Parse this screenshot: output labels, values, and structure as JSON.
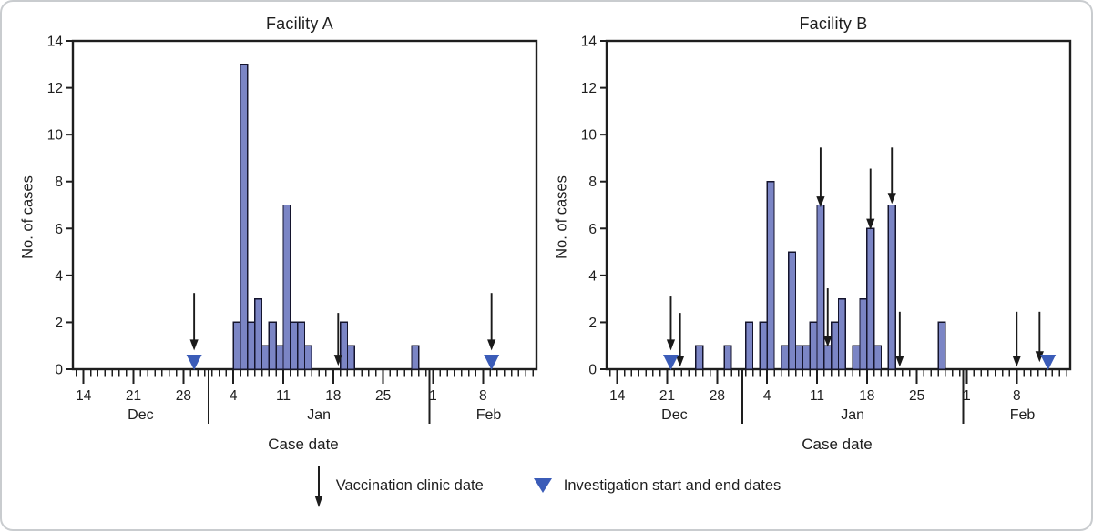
{
  "figure": {
    "legend": [
      {
        "symbol": "down-arrow",
        "label": "Vaccination clinic date"
      },
      {
        "symbol": "blue-triangle",
        "label": "Investigation start and end dates"
      }
    ],
    "colors": {
      "bar_fill": "#7b85c5",
      "bar_stroke": "#14142d",
      "triangle_blue": "#3b5cb8",
      "axis": "#1e1e1e",
      "frame_border": "#c9cccf"
    },
    "axis": {
      "y": {
        "label": "No. of cases",
        "min": 0,
        "max": 14,
        "ticks": [
          0,
          2,
          4,
          6,
          8,
          10,
          12,
          14
        ]
      },
      "x": {
        "label": "Case date",
        "day_zero_date": "Dec 14",
        "day_min": -1.5,
        "day_max": 63.5,
        "week_ticks": [
          {
            "day": 0,
            "label": "14"
          },
          {
            "day": 7,
            "label": "21"
          },
          {
            "day": 14,
            "label": "28"
          },
          {
            "day": 21,
            "label": "4"
          },
          {
            "day": 28,
            "label": "11"
          },
          {
            "day": 35,
            "label": "18"
          },
          {
            "day": 42,
            "label": "25"
          },
          {
            "day": 49,
            "label": "1"
          },
          {
            "day": 56,
            "label": "8"
          }
        ],
        "month_separators": [
          17.5,
          48.5
        ],
        "months": [
          {
            "day": 8,
            "label": "Dec"
          },
          {
            "day": 33,
            "label": "Jan"
          },
          {
            "day": 56.8,
            "label": "Feb"
          }
        ]
      }
    }
  },
  "chart_data": [
    {
      "type": "bar",
      "title": "Facility A",
      "xlabel": "Case date",
      "ylabel": "No. of cases",
      "ylim": [
        0,
        14
      ],
      "bars": [
        {
          "date": "Jan 4",
          "day": 21,
          "cases": 2
        },
        {
          "date": "Jan 5",
          "day": 22,
          "cases": 13
        },
        {
          "date": "Jan 6",
          "day": 23,
          "cases": 2
        },
        {
          "date": "Jan 7",
          "day": 24,
          "cases": 3
        },
        {
          "date": "Jan 8",
          "day": 25,
          "cases": 1
        },
        {
          "date": "Jan 9",
          "day": 26,
          "cases": 2
        },
        {
          "date": "Jan 10",
          "day": 27,
          "cases": 1
        },
        {
          "date": "Jan 11",
          "day": 28,
          "cases": 7
        },
        {
          "date": "Jan 12",
          "day": 29,
          "cases": 2
        },
        {
          "date": "Jan 13",
          "day": 30,
          "cases": 2
        },
        {
          "date": "Jan 14",
          "day": 31,
          "cases": 1
        },
        {
          "date": "Jan 19",
          "day": 36,
          "cases": 2
        },
        {
          "date": "Jan 20",
          "day": 37,
          "cases": 1
        },
        {
          "date": "Jan 29",
          "day": 46,
          "cases": 1
        }
      ],
      "vaccination_clinic_arrows": [
        {
          "date": "Dec 29",
          "day": 15.5,
          "y_from": 3.25,
          "y_tip": 0.8
        },
        {
          "date": "Jan 19",
          "day": 35.7,
          "y_from": 2.4,
          "y_tip": 0.15
        },
        {
          "date": "Feb 9",
          "day": 57.2,
          "y_from": 3.25,
          "y_tip": 0.8
        }
      ],
      "investigation_markers": [
        {
          "type": "start",
          "date": "Dec 29",
          "day": 15.5
        },
        {
          "type": "end",
          "date": "Feb 9",
          "day": 57.2
        }
      ]
    },
    {
      "type": "bar",
      "title": "Facility B",
      "xlabel": "Case date",
      "ylabel": "No. of cases",
      "ylim": [
        0,
        14
      ],
      "bars": [
        {
          "date": "Dec 25",
          "day": 11,
          "cases": 1
        },
        {
          "date": "Dec 29",
          "day": 15,
          "cases": 1
        },
        {
          "date": "Jan 1",
          "day": 18,
          "cases": 2
        },
        {
          "date": "Jan 3",
          "day": 20,
          "cases": 2
        },
        {
          "date": "Jan 4",
          "day": 21,
          "cases": 8
        },
        {
          "date": "Jan 6",
          "day": 23,
          "cases": 1
        },
        {
          "date": "Jan 7",
          "day": 24,
          "cases": 5
        },
        {
          "date": "Jan 8",
          "day": 25,
          "cases": 1
        },
        {
          "date": "Jan 9",
          "day": 26,
          "cases": 1
        },
        {
          "date": "Jan 10",
          "day": 27,
          "cases": 2
        },
        {
          "date": "Jan 11",
          "day": 28,
          "cases": 7
        },
        {
          "date": "Jan 12",
          "day": 29,
          "cases": 1
        },
        {
          "date": "Jan 13",
          "day": 30,
          "cases": 2
        },
        {
          "date": "Jan 14",
          "day": 31,
          "cases": 3
        },
        {
          "date": "Jan 16",
          "day": 33,
          "cases": 1
        },
        {
          "date": "Jan 17",
          "day": 34,
          "cases": 3
        },
        {
          "date": "Jan 18",
          "day": 35,
          "cases": 6
        },
        {
          "date": "Jan 19",
          "day": 36,
          "cases": 1
        },
        {
          "date": "Jan 21",
          "day": 38,
          "cases": 7
        },
        {
          "date": "Jan 28",
          "day": 45,
          "cases": 2
        }
      ],
      "vaccination_clinic_arrows": [
        {
          "date": "Dec 21",
          "day": 7.5,
          "y_from": 3.1,
          "y_tip": 0.8
        },
        {
          "date": "Dec 22",
          "day": 8.8,
          "y_from": 2.4,
          "y_tip": 0.1
        },
        {
          "date": "Jan 11",
          "day": 28.5,
          "y_from": 9.45,
          "y_tip": 6.9
        },
        {
          "date": "Jan 12",
          "day": 29.5,
          "y_from": 3.45,
          "y_tip": 0.95
        },
        {
          "date": "Jan 18",
          "day": 35.5,
          "y_from": 8.55,
          "y_tip": 5.95
        },
        {
          "date": "Jan 21",
          "day": 38.5,
          "y_from": 9.45,
          "y_tip": 7.05
        },
        {
          "date": "Jan 22",
          "day": 39.6,
          "y_from": 2.45,
          "y_tip": 0.1
        },
        {
          "date": "Feb 8",
          "day": 56.0,
          "y_from": 2.45,
          "y_tip": 0.1
        },
        {
          "date": "Feb 11",
          "day": 59.2,
          "y_from": 2.45,
          "y_tip": 0.3
        }
      ],
      "investigation_markers": [
        {
          "type": "start",
          "date": "Dec 21",
          "day": 7.5
        },
        {
          "type": "end",
          "date": "Feb 12",
          "day": 60.4
        }
      ]
    }
  ]
}
